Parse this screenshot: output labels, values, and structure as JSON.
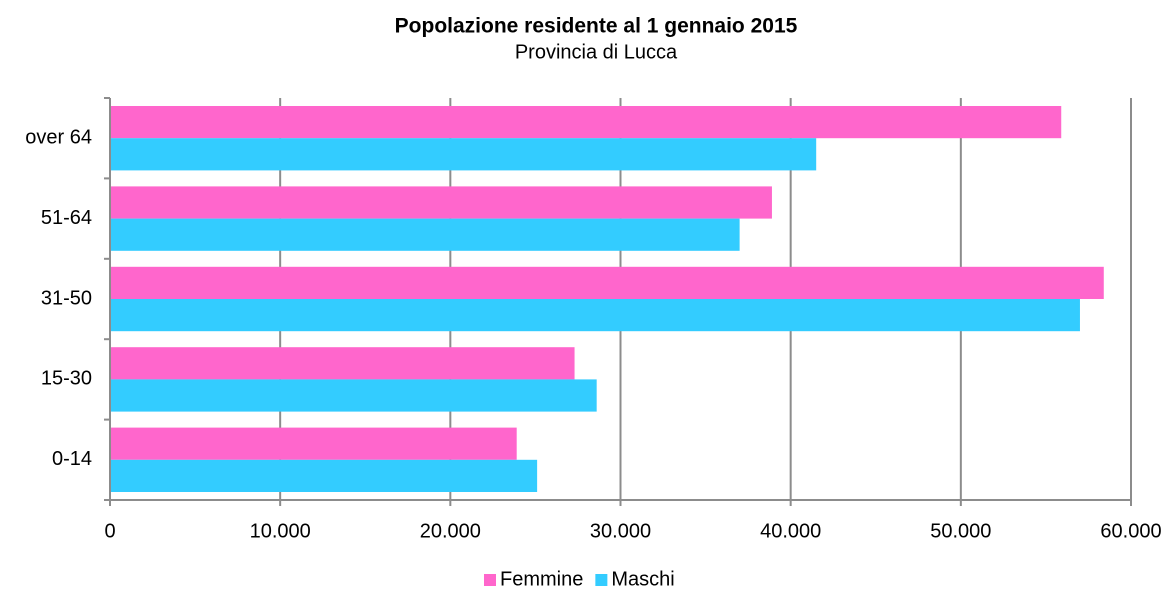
{
  "chart_data": {
    "type": "barh",
    "title": "Popolazione residente al 1 gennaio 2015",
    "subtitle": "Provincia di Lucca",
    "categories": [
      "0-14",
      "15-30",
      "31-50",
      "51-64",
      "over 64"
    ],
    "series": [
      {
        "name": "Femmine",
        "color": "#ff66cc",
        "values": [
          23900,
          27300,
          58400,
          38900,
          55900
        ]
      },
      {
        "name": "Maschi",
        "color": "#33ccff",
        "values": [
          25100,
          28600,
          57000,
          37000,
          41500
        ]
      }
    ],
    "xlim": [
      0,
      60000
    ],
    "xticks": [
      0,
      {
        "value": 10000,
        "label": "10.000"
      },
      {
        "value": 20000,
        "label": "20.000"
      },
      {
        "value": 30000,
        "label": "30.000"
      },
      {
        "value": 40000,
        "label": "40.000"
      },
      {
        "value": 50000,
        "label": "50.000"
      },
      {
        "value": 60000,
        "label": "60.000"
      }
    ],
    "grid": true,
    "legend": "bottom"
  }
}
